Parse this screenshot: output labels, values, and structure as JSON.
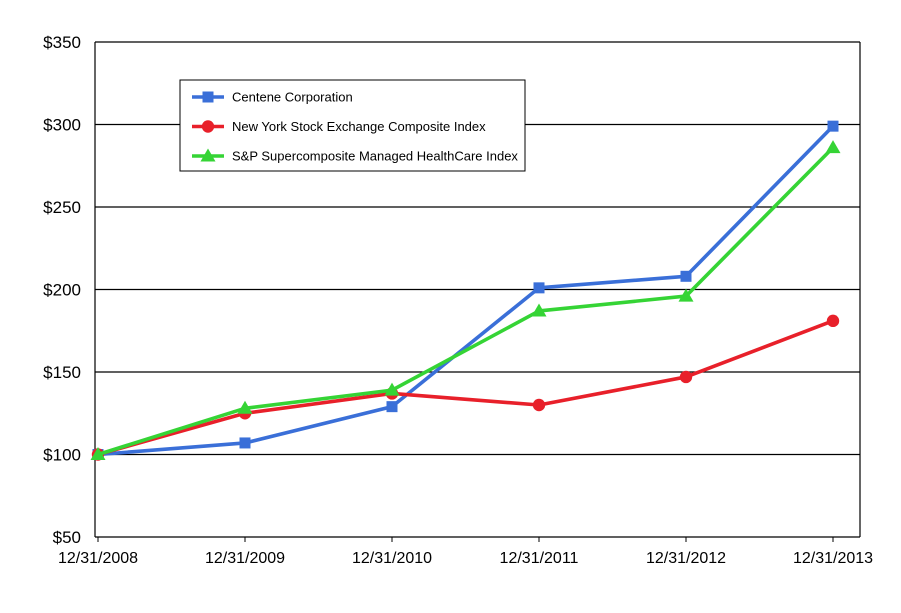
{
  "chart_data": {
    "type": "line",
    "categories": [
      "12/31/2008",
      "12/31/2009",
      "12/31/2010",
      "12/31/2011",
      "12/31/2012",
      "12/31/2013"
    ],
    "series": [
      {
        "name": "Centene Corporation",
        "color": "#3A6FD8",
        "marker": "square",
        "values": [
          100,
          107,
          129,
          201,
          208,
          299
        ]
      },
      {
        "name": "New York Stock Exchange Composite Index",
        "color": "#E8202A",
        "marker": "circle",
        "values": [
          100,
          125,
          137,
          130,
          147,
          181
        ]
      },
      {
        "name": "S&P Supercomposite Managed HealthCare Index",
        "color": "#35D435",
        "marker": "triangle",
        "values": [
          100,
          128,
          139,
          187,
          196,
          286
        ]
      }
    ],
    "ylim": [
      50,
      350
    ],
    "ytick_step": 50,
    "ytick_prefix": "$",
    "grid": "horizontal",
    "legend_position": "top-left-inside",
    "axis_color": "#000000",
    "background_color": "#ffffff"
  }
}
